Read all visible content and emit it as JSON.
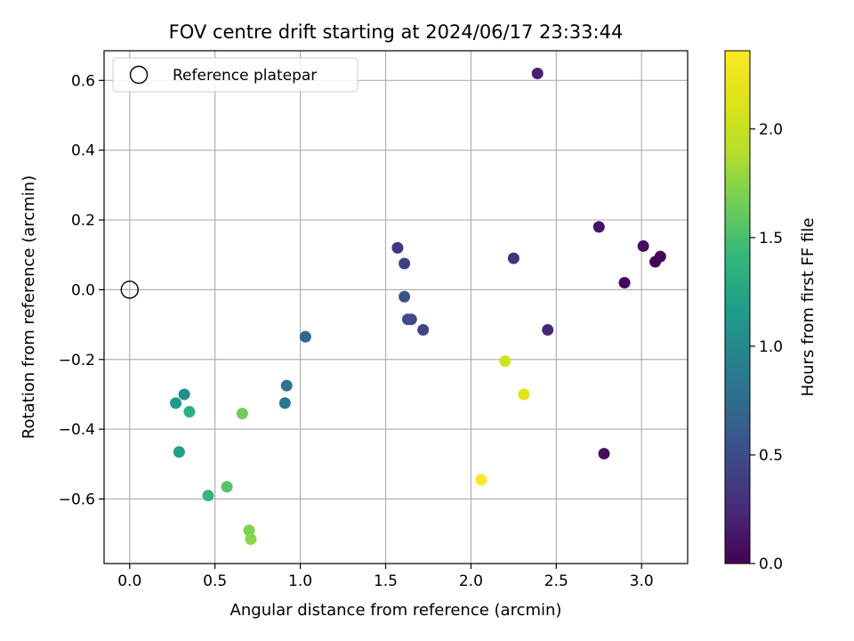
{
  "chart_data": {
    "type": "scatter",
    "title": "FOV centre drift starting at 2024/06/17 23:33:44",
    "xlabel": "Angular distance from reference (arcmin)",
    "ylabel": "Rotation from reference (arcmin)",
    "xlim": [
      -0.15,
      3.27
    ],
    "ylim": [
      -0.785,
      0.685
    ],
    "xticks": [
      0.0,
      0.5,
      1.0,
      1.5,
      2.0,
      2.5,
      3.0
    ],
    "xtick_labels": [
      "0.0",
      "0.5",
      "1.0",
      "1.5",
      "2.0",
      "2.5",
      "3.0"
    ],
    "yticks": [
      -0.6,
      -0.4,
      -0.2,
      0.0,
      0.2,
      0.4,
      0.6
    ],
    "ytick_labels": [
      "−0.6",
      "−0.4",
      "−0.2",
      "0.0",
      "0.2",
      "0.4",
      "0.6"
    ],
    "grid": true,
    "colormap": "viridis",
    "colorbar": {
      "label": "Hours from first FF file",
      "range": [
        0.0,
        2.36
      ],
      "ticks": [
        0.0,
        0.5,
        1.0,
        1.5,
        2.0
      ],
      "tick_labels": [
        "0.0",
        "0.5",
        "1.0",
        "1.5",
        "2.0"
      ]
    },
    "legend": {
      "placement": "upper-left",
      "entries": [
        "Reference platepar"
      ]
    },
    "reference_point": {
      "x": 0.0,
      "y": 0.0,
      "marker": "open-circle",
      "color": "#000000"
    },
    "points": [
      {
        "x": 3.08,
        "y": 0.08,
        "c": 0.0
      },
      {
        "x": 3.11,
        "y": 0.095,
        "c": 0.02
      },
      {
        "x": 2.78,
        "y": -0.47,
        "c": 0.08
      },
      {
        "x": 2.9,
        "y": 0.02,
        "c": 0.05
      },
      {
        "x": 3.01,
        "y": 0.125,
        "c": 0.08
      },
      {
        "x": 2.75,
        "y": 0.18,
        "c": 0.12
      },
      {
        "x": 2.39,
        "y": 0.62,
        "c": 0.2
      },
      {
        "x": 2.45,
        "y": -0.115,
        "c": 0.24
      },
      {
        "x": 2.25,
        "y": 0.09,
        "c": 0.3
      },
      {
        "x": 1.57,
        "y": 0.12,
        "c": 0.35
      },
      {
        "x": 1.61,
        "y": 0.075,
        "c": 0.4
      },
      {
        "x": 1.72,
        "y": -0.115,
        "c": 0.45
      },
      {
        "x": 1.65,
        "y": -0.085,
        "c": 0.48
      },
      {
        "x": 1.63,
        "y": -0.085,
        "c": 0.5
      },
      {
        "x": 1.61,
        "y": -0.02,
        "c": 0.55
      },
      {
        "x": 1.03,
        "y": -0.135,
        "c": 0.7
      },
      {
        "x": 0.92,
        "y": -0.275,
        "c": 0.8
      },
      {
        "x": 0.91,
        "y": -0.325,
        "c": 0.85
      },
      {
        "x": 0.32,
        "y": -0.3,
        "c": 1.05
      },
      {
        "x": 0.27,
        "y": -0.325,
        "c": 1.15
      },
      {
        "x": 0.29,
        "y": -0.465,
        "c": 1.2
      },
      {
        "x": 0.35,
        "y": -0.35,
        "c": 1.35
      },
      {
        "x": 0.46,
        "y": -0.59,
        "c": 1.4
      },
      {
        "x": 0.57,
        "y": -0.565,
        "c": 1.55
      },
      {
        "x": 0.66,
        "y": -0.355,
        "c": 1.65
      },
      {
        "x": 0.7,
        "y": -0.69,
        "c": 1.7
      },
      {
        "x": 0.71,
        "y": -0.715,
        "c": 1.75
      },
      {
        "x": 2.2,
        "y": -0.205,
        "c": 2.05
      },
      {
        "x": 2.31,
        "y": -0.3,
        "c": 2.15
      },
      {
        "x": 2.06,
        "y": -0.545,
        "c": 2.36
      }
    ]
  }
}
